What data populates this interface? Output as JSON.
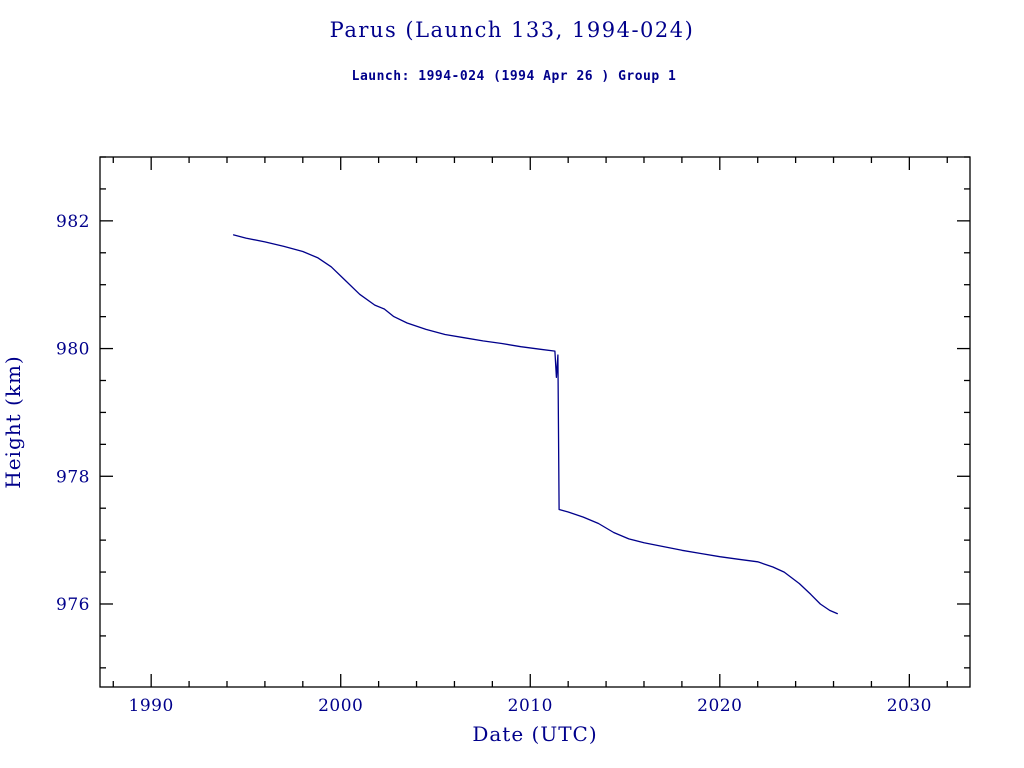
{
  "chart_data": {
    "type": "line",
    "title": "Parus (Launch 133, 1994-024)",
    "subtitle": "Launch: 1994-024  (1994 Apr 26 )  Group 1",
    "xlabel": "Date (UTC)",
    "ylabel": "Height (km)",
    "xlim": [
      1987.3,
      2033.2
    ],
    "ylim": [
      974.7,
      983.0
    ],
    "x_major_ticks": [
      1990,
      2000,
      2010,
      2020,
      2030
    ],
    "x_minor_step": 2,
    "y_major_ticks": [
      976,
      978,
      980,
      982
    ],
    "y_minor_step": 0.5,
    "grid": "off",
    "legend": "none",
    "frame_color": "#000000",
    "line_color": "#00008b",
    "text_color": "#00008b",
    "background_color": "#ffffff",
    "series": [
      {
        "name": "orbit-height-km",
        "points": [
          [
            1994.35,
            981.78
          ],
          [
            1995.0,
            981.73
          ],
          [
            1996.0,
            981.67
          ],
          [
            1997.0,
            981.6
          ],
          [
            1998.0,
            981.52
          ],
          [
            1998.8,
            981.42
          ],
          [
            1999.5,
            981.28
          ],
          [
            2000.2,
            981.08
          ],
          [
            2001.0,
            980.85
          ],
          [
            2001.8,
            980.68
          ],
          [
            2002.3,
            980.62
          ],
          [
            2002.8,
            980.5
          ],
          [
            2003.5,
            980.4
          ],
          [
            2004.5,
            980.3
          ],
          [
            2005.5,
            980.22
          ],
          [
            2006.5,
            980.17
          ],
          [
            2007.5,
            980.12
          ],
          [
            2008.5,
            980.08
          ],
          [
            2009.5,
            980.03
          ],
          [
            2010.5,
            979.99
          ],
          [
            2011.3,
            979.96
          ],
          [
            2011.38,
            979.55
          ],
          [
            2011.46,
            979.9
          ],
          [
            2011.52,
            977.48
          ],
          [
            2012.0,
            977.44
          ],
          [
            2012.8,
            977.36
          ],
          [
            2013.6,
            977.26
          ],
          [
            2014.4,
            977.12
          ],
          [
            2015.2,
            977.02
          ],
          [
            2016.0,
            976.96
          ],
          [
            2017.0,
            976.9
          ],
          [
            2018.0,
            976.84
          ],
          [
            2019.0,
            976.79
          ],
          [
            2020.0,
            976.74
          ],
          [
            2021.0,
            976.7
          ],
          [
            2022.0,
            976.66
          ],
          [
            2022.8,
            976.58
          ],
          [
            2023.4,
            976.5
          ],
          [
            2024.2,
            976.32
          ],
          [
            2024.8,
            976.15
          ],
          [
            2025.3,
            976.0
          ],
          [
            2025.8,
            975.9
          ],
          [
            2026.2,
            975.85
          ]
        ]
      }
    ]
  }
}
